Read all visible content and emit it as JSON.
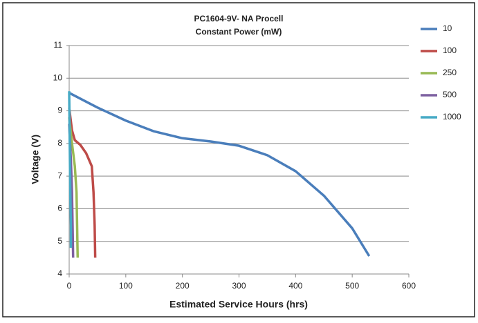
{
  "chart_data": {
    "type": "line",
    "title": "PC1604-9V- NA Procell",
    "subtitle": "Constant Power  (mW)",
    "x_label": "Estimated Service Hours (hrs)",
    "y_label": "Voltage (V)",
    "xlim": [
      0,
      600
    ],
    "xticks": [
      0,
      100,
      200,
      300,
      400,
      500,
      600
    ],
    "ylim": [
      4,
      11
    ],
    "yticks": [
      4,
      5,
      6,
      7,
      8,
      9,
      10,
      11
    ],
    "grid": true,
    "legend": "right",
    "series": [
      {
        "name": "10",
        "color": "#4a7ebb",
        "x": [
          0,
          50,
          100,
          150,
          200,
          250,
          300,
          350,
          400,
          450,
          500,
          530
        ],
        "values": [
          9.55,
          9.1,
          8.7,
          8.37,
          8.16,
          8.06,
          7.93,
          7.64,
          7.15,
          6.4,
          5.4,
          4.55
        ]
      },
      {
        "name": "100",
        "color": "#be4b48",
        "x": [
          0,
          5,
          10,
          20,
          30,
          40,
          43,
          45,
          46
        ],
        "values": [
          9.1,
          8.4,
          8.1,
          7.95,
          7.7,
          7.3,
          6.5,
          5.5,
          4.5
        ]
      },
      {
        "name": "250",
        "color": "#98b954",
        "x": [
          0,
          5,
          10,
          13,
          14,
          15
        ],
        "values": [
          8.8,
          8.0,
          7.3,
          6.5,
          5.5,
          4.5
        ]
      },
      {
        "name": "500",
        "color": "#7d60a0",
        "x": [
          0,
          3,
          5,
          6,
          7
        ],
        "values": [
          8.6,
          7.5,
          6.5,
          5.5,
          4.5
        ]
      },
      {
        "name": "1000",
        "color": "#46aac5",
        "x": [
          0,
          1,
          2,
          3,
          3
        ],
        "values": [
          9.6,
          8.0,
          6.5,
          5.5,
          4.8
        ]
      }
    ]
  }
}
